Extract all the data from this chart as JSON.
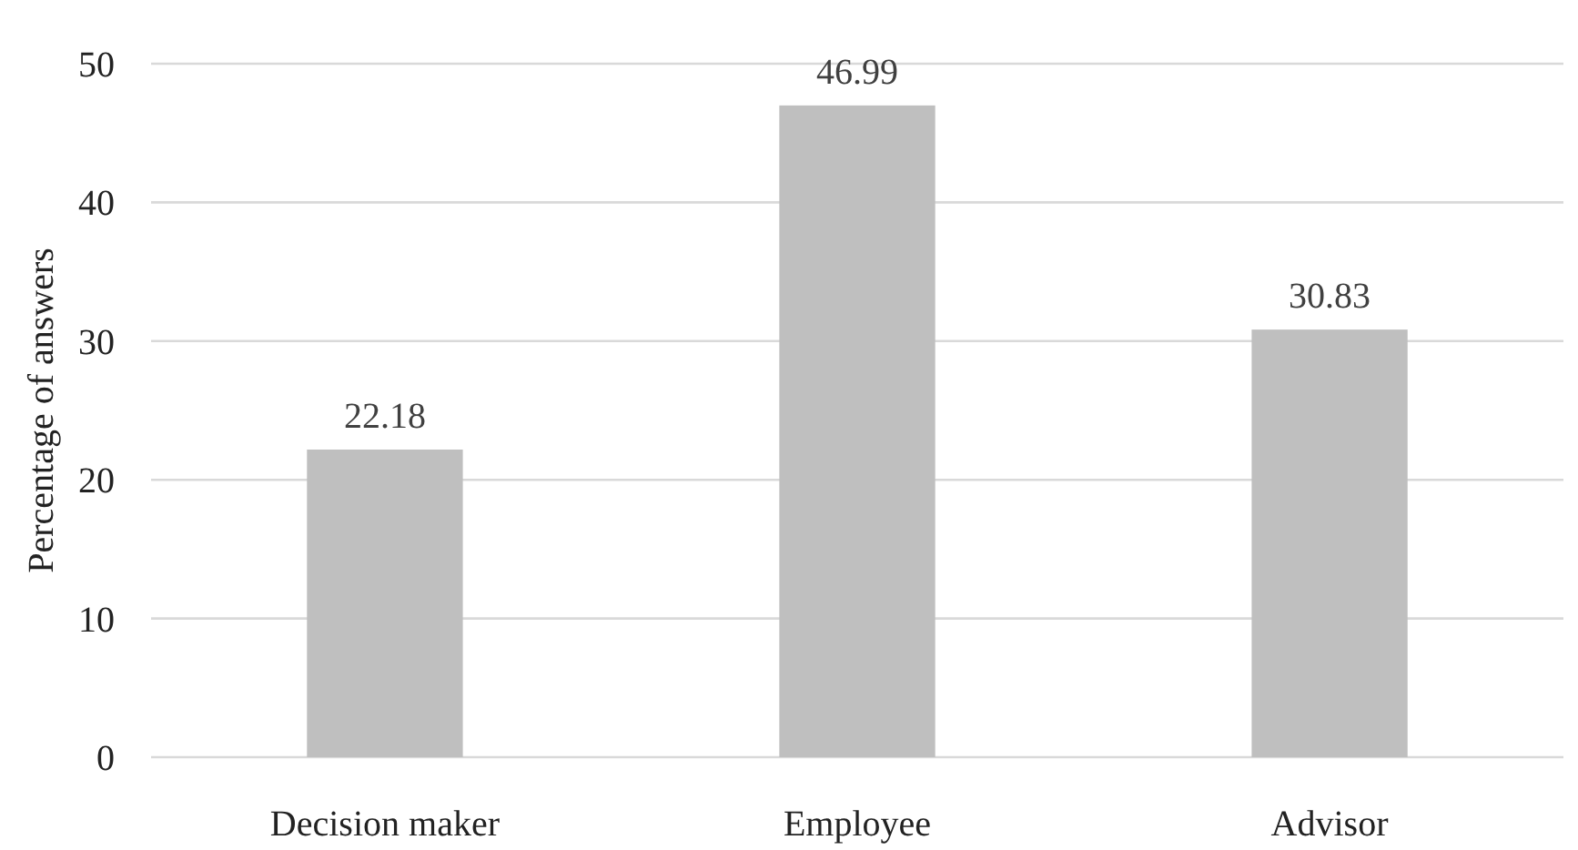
{
  "chart_data": {
    "type": "bar",
    "ylabel": "Percentage of answers",
    "categories": [
      "Decision maker",
      "Employee",
      "Advisor"
    ],
    "values": [
      22.18,
      46.99,
      30.83
    ],
    "color": "#bfbfbf",
    "ylim": [
      0,
      50
    ],
    "yticks": [
      0,
      10,
      20,
      30,
      40,
      50
    ],
    "grid": "y",
    "data_labels": true
  }
}
